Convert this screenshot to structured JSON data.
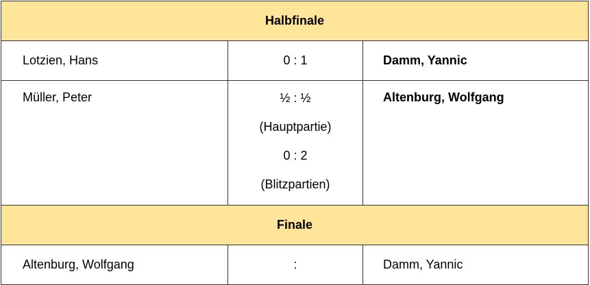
{
  "header_color": "#FFE599",
  "sections": [
    {
      "title": "Halbfinale",
      "matches": [
        {
          "player1": "Lotzien, Hans",
          "result": [
            "0 : 1"
          ],
          "player2": "Damm, Yannic",
          "winner": "player2"
        },
        {
          "player1": "Müller, Peter",
          "result": [
            "½ : ½",
            "(Hauptpartie)",
            "0 : 2",
            "(Blitzpartien)"
          ],
          "player2": "Altenburg, Wolfgang",
          "winner": "player2"
        }
      ]
    },
    {
      "title": "Finale",
      "matches": [
        {
          "player1": "Altenburg, Wolfgang",
          "result": [
            ":"
          ],
          "player2": "Damm, Yannic",
          "winner": ""
        }
      ]
    }
  ]
}
